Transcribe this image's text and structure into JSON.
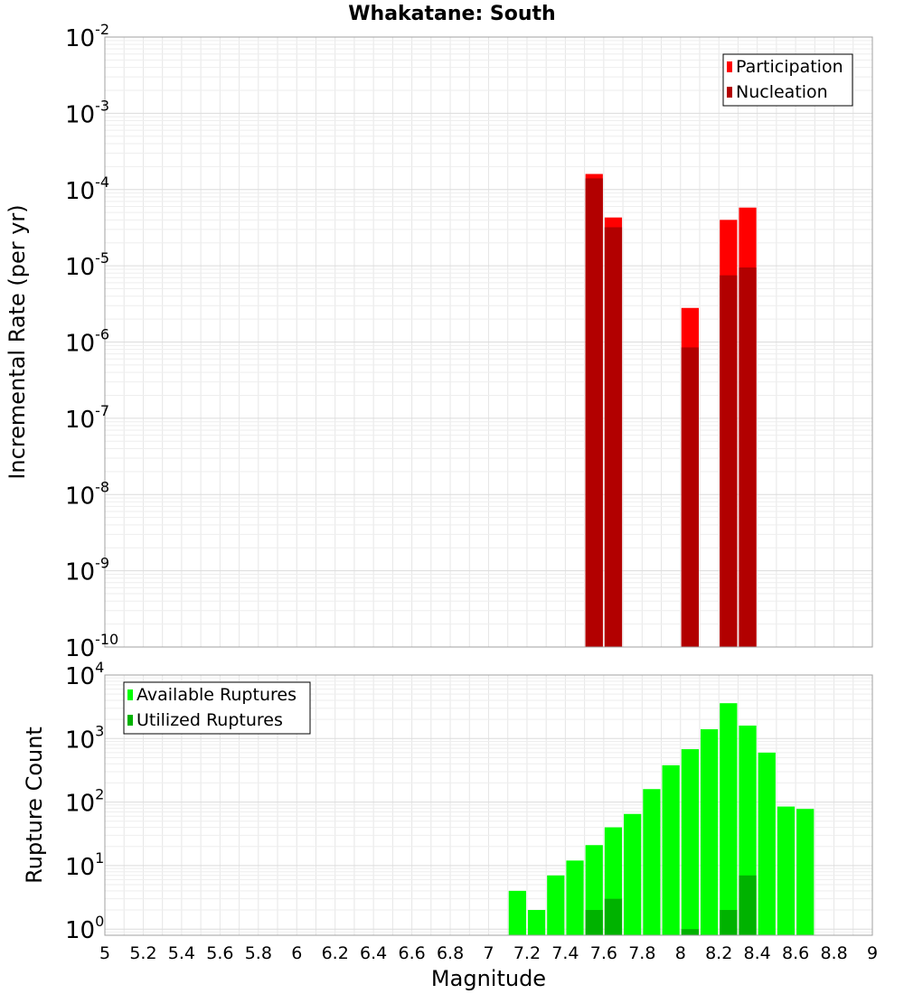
{
  "title": "Whakatane: South",
  "chart_data": [
    {
      "type": "bar",
      "title": "Whakatane: South",
      "ylabel": "Incremental Rate (per yr)",
      "xlabel": "Magnitude",
      "yscale": "log",
      "ylim": [
        1e-10,
        0.01
      ],
      "xlim": [
        5,
        9
      ],
      "grid": true,
      "legend_position": "top-right",
      "y_ticks": [
        {
          "base": "10",
          "exp": "-10"
        },
        {
          "base": "10",
          "exp": "-9"
        },
        {
          "base": "10",
          "exp": "-8"
        },
        {
          "base": "10",
          "exp": "-7"
        },
        {
          "base": "10",
          "exp": "-6"
        },
        {
          "base": "10",
          "exp": "-5"
        },
        {
          "base": "10",
          "exp": "-4"
        },
        {
          "base": "10",
          "exp": "-3"
        },
        {
          "base": "10",
          "exp": "-2"
        }
      ],
      "series": [
        {
          "name": "Participation",
          "color": "#ff0000",
          "x": [
            7.55,
            7.65,
            8.05,
            8.25,
            8.35
          ],
          "values": [
            0.00016,
            4.3e-05,
            2.8e-06,
            4e-05,
            5.8e-05
          ]
        },
        {
          "name": "Nucleation",
          "color": "#b20000",
          "x": [
            7.55,
            7.65,
            8.05,
            8.25,
            8.35
          ],
          "values": [
            0.00014,
            3.2e-05,
            8.5e-07,
            7.5e-06,
            9.5e-06
          ]
        }
      ]
    },
    {
      "type": "bar",
      "ylabel": "Rupture Count",
      "xlabel": "Magnitude",
      "yscale": "log",
      "ylim": [
        0.8,
        10000
      ],
      "xlim": [
        5,
        9
      ],
      "grid": true,
      "legend_position": "top-left",
      "y_ticks": [
        {
          "base": "10",
          "exp": "0"
        },
        {
          "base": "10",
          "exp": "1"
        },
        {
          "base": "10",
          "exp": "2"
        },
        {
          "base": "10",
          "exp": "3"
        },
        {
          "base": "10",
          "exp": "4"
        }
      ],
      "x_ticks": [
        "5",
        "5.2",
        "5.4",
        "5.6",
        "5.8",
        "6",
        "6.2",
        "6.4",
        "6.6",
        "6.8",
        "7",
        "7.2",
        "7.4",
        "7.6",
        "7.8",
        "8",
        "8.2",
        "8.4",
        "8.6",
        "8.8",
        "9"
      ],
      "series": [
        {
          "name": "Available Ruptures",
          "color": "#00ff00",
          "x": [
            7.15,
            7.25,
            7.35,
            7.45,
            7.55,
            7.65,
            7.75,
            7.85,
            7.95,
            8.05,
            8.15,
            8.25,
            8.35,
            8.45,
            8.55,
            8.65
          ],
          "values": [
            4,
            2,
            7,
            12,
            21,
            40,
            65,
            160,
            380,
            680,
            1400,
            3600,
            1600,
            600,
            85,
            78
          ]
        },
        {
          "name": "Utilized Ruptures",
          "color": "#00b200",
          "x": [
            7.55,
            7.65,
            8.05,
            8.25,
            8.35
          ],
          "values": [
            2,
            3,
            1,
            2,
            7
          ]
        }
      ]
    }
  ]
}
